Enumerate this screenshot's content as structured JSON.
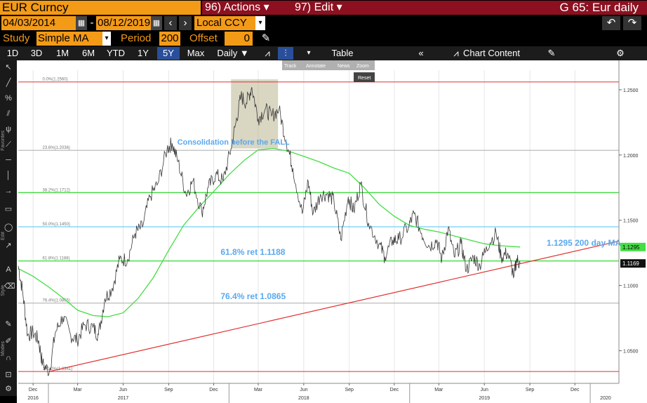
{
  "header": {
    "security": "EUR Curncy",
    "actions_label": "96) Actions ▾",
    "edit_label": "97) Edit ▾",
    "title": "G 65: Eur daily"
  },
  "daterange": {
    "start": "04/03/2014",
    "separator": "-",
    "end": "08/12/2019",
    "currency": "Local CCY"
  },
  "study": {
    "label": "Study",
    "value": "Simple MA",
    "period_label": "Period",
    "period_value": "200",
    "offset_label": "Offset",
    "offset_value": "0"
  },
  "toolbar": {
    "ranges": [
      "1D",
      "3D",
      "1M",
      "6M",
      "YTD",
      "1Y",
      "5Y",
      "Max"
    ],
    "selected_range": "5Y",
    "frequency": "Daily ▼",
    "table_label": "Table",
    "chart_content_label": "Chart Content"
  },
  "overlay_buttons": {
    "track": "Track",
    "annotate": "Annotate",
    "news": "News",
    "zoom": "Zoom",
    "reset": "Reset"
  },
  "sidebar": {
    "favorites": "Favorites",
    "edit": "Edit",
    "style": "Style",
    "modes": "Modes"
  },
  "colors": {
    "accent": "#f39a17",
    "red_header": "#8c1020",
    "fib_green": "#00d000",
    "ma_green": "#44dd44",
    "trend_red": "#e03030",
    "label_blue": "#5aa9ee"
  },
  "chart_data": {
    "type": "line",
    "title": "",
    "xlabel": "",
    "ylabel": "",
    "ylim": [
      1.025,
      1.265
    ],
    "x_range": [
      "2016-11-01",
      "2020-02-28"
    ],
    "x_tick_labels": [
      {
        "date": "2016-12-01",
        "label": "Dec"
      },
      {
        "date": "2017-03-01",
        "label": "Mar"
      },
      {
        "date": "2017-06-01",
        "label": "Jun"
      },
      {
        "date": "2017-09-01",
        "label": "Sep"
      },
      {
        "date": "2017-12-01",
        "label": "Dec"
      },
      {
        "date": "2018-03-01",
        "label": "Mar"
      },
      {
        "date": "2018-06-01",
        "label": "Jun"
      },
      {
        "date": "2018-09-01",
        "label": "Sep"
      },
      {
        "date": "2018-12-01",
        "label": "Dec"
      },
      {
        "date": "2019-03-01",
        "label": "Mar"
      },
      {
        "date": "2019-06-01",
        "label": "Jun"
      },
      {
        "date": "2019-09-01",
        "label": "Sep"
      },
      {
        "date": "2019-12-01",
        "label": "Dec"
      }
    ],
    "year_labels": [
      {
        "date": "2016-12-01",
        "label": "2016"
      },
      {
        "date": "2017-06-01",
        "label": "2017"
      },
      {
        "date": "2018-06-01",
        "label": "2018"
      },
      {
        "date": "2019-06-01",
        "label": "2019"
      },
      {
        "date": "2020-02-01",
        "label": "2020"
      }
    ],
    "y_ticks": [
      1.05,
      1.1,
      1.15,
      1.2,
      1.25
    ],
    "y_tick_labels": [
      "1.0500",
      "1.1000",
      "1.1500",
      "1.2000",
      "1.2500"
    ],
    "last_price": {
      "value": 1.1169,
      "label": "1.1169"
    },
    "last_ma": {
      "value": 1.1295,
      "label": "1.1295"
    },
    "fib_levels": [
      {
        "value": 1.256,
        "label": "0.0%(1.2560)",
        "color": "#e03030"
      },
      {
        "value": 1.2036,
        "label": "23.6%(1.2036)",
        "color": "#aaaaaa"
      },
      {
        "value": 1.1712,
        "label": "38.2%(1.1712)",
        "color": "#00d000"
      },
      {
        "value": 1.145,
        "label": "50.0%(1.1450)",
        "color": "#4fc3f7"
      },
      {
        "value": 1.1188,
        "label": "61.8%(1.1188)",
        "color": "#00d000"
      },
      {
        "value": 1.0865,
        "label": "76.4%(1.0865)",
        "color": "#aaaaaa"
      },
      {
        "value": 1.0341,
        "label": "100.0%(1.0341)",
        "color": "#e03030"
      }
    ],
    "annotations": [
      {
        "text": "Consolidation before the FALL",
        "date": "2018-01-10",
        "value": 1.208
      },
      {
        "text": "61.8% ret 1.1188",
        "date": "2017-12-15",
        "value": 1.1235
      },
      {
        "text": "76.4% ret 1.0865",
        "date": "2017-12-15",
        "value": 1.0895
      },
      {
        "text": "1.1295 200 day MA",
        "date": "2019-10-05",
        "value": 1.1305
      }
    ],
    "highlight_box": {
      "x0": "2018-01-05",
      "x1": "2018-04-10",
      "y0": 1.205,
      "y1": 1.258
    },
    "trendline": [
      {
        "date": "2017-01-03",
        "value": 1.0341
      },
      {
        "date": "2020-02-28",
        "value": 1.134
      }
    ],
    "series": [
      {
        "name": "EUR Curncy",
        "color": "#d8d8d8",
        "points": [
          [
            "2016-11-01",
            1.115
          ],
          [
            "2016-11-10",
            1.095
          ],
          [
            "2016-11-20",
            1.062
          ],
          [
            "2016-12-01",
            1.064
          ],
          [
            "2016-12-12",
            1.058
          ],
          [
            "2016-12-20",
            1.04
          ],
          [
            "2017-01-03",
            1.0341
          ],
          [
            "2017-01-15",
            1.064
          ],
          [
            "2017-01-30",
            1.076
          ],
          [
            "2017-02-15",
            1.062
          ],
          [
            "2017-02-28",
            1.058
          ],
          [
            "2017-03-15",
            1.07
          ],
          [
            "2017-04-01",
            1.068
          ],
          [
            "2017-04-12",
            1.062
          ],
          [
            "2017-04-25",
            1.09
          ],
          [
            "2017-05-10",
            1.098
          ],
          [
            "2017-05-25",
            1.12
          ],
          [
            "2017-06-10",
            1.12
          ],
          [
            "2017-06-25",
            1.14
          ],
          [
            "2017-07-10",
            1.145
          ],
          [
            "2017-07-25",
            1.168
          ],
          [
            "2017-08-10",
            1.178
          ],
          [
            "2017-08-29",
            1.205
          ],
          [
            "2017-09-08",
            1.209
          ],
          [
            "2017-09-20",
            1.195
          ],
          [
            "2017-10-06",
            1.17
          ],
          [
            "2017-10-20",
            1.18
          ],
          [
            "2017-11-07",
            1.156
          ],
          [
            "2017-11-20",
            1.175
          ],
          [
            "2017-12-05",
            1.185
          ],
          [
            "2017-12-20",
            1.18
          ],
          [
            "2018-01-05",
            1.205
          ],
          [
            "2018-01-15",
            1.225
          ],
          [
            "2018-01-25",
            1.245
          ],
          [
            "2018-02-05",
            1.24
          ],
          [
            "2018-02-16",
            1.252
          ],
          [
            "2018-03-01",
            1.228
          ],
          [
            "2018-03-15",
            1.235
          ],
          [
            "2018-03-28",
            1.23
          ],
          [
            "2018-04-12",
            1.235
          ],
          [
            "2018-04-27",
            1.21
          ],
          [
            "2018-05-10",
            1.19
          ],
          [
            "2018-05-29",
            1.155
          ],
          [
            "2018-06-10",
            1.18
          ],
          [
            "2018-06-20",
            1.155
          ],
          [
            "2018-07-05",
            1.17
          ],
          [
            "2018-07-20",
            1.17
          ],
          [
            "2018-08-01",
            1.165
          ],
          [
            "2018-08-15",
            1.135
          ],
          [
            "2018-08-30",
            1.168
          ],
          [
            "2018-09-10",
            1.157
          ],
          [
            "2018-09-24",
            1.178
          ],
          [
            "2018-10-10",
            1.148
          ],
          [
            "2018-10-31",
            1.132
          ],
          [
            "2018-11-12",
            1.122
          ],
          [
            "2018-11-28",
            1.135
          ],
          [
            "2018-12-10",
            1.135
          ],
          [
            "2018-12-31",
            1.146
          ],
          [
            "2019-01-10",
            1.155
          ],
          [
            "2019-01-25",
            1.14
          ],
          [
            "2019-02-10",
            1.13
          ],
          [
            "2019-02-25",
            1.135
          ],
          [
            "2019-03-07",
            1.12
          ],
          [
            "2019-03-20",
            1.144
          ],
          [
            "2019-04-01",
            1.122
          ],
          [
            "2019-04-15",
            1.132
          ],
          [
            "2019-04-26",
            1.112
          ],
          [
            "2019-05-10",
            1.122
          ],
          [
            "2019-05-23",
            1.115
          ],
          [
            "2019-06-05",
            1.13
          ],
          [
            "2019-06-25",
            1.14
          ],
          [
            "2019-07-05",
            1.122
          ],
          [
            "2019-07-18",
            1.125
          ],
          [
            "2019-07-31",
            1.107
          ],
          [
            "2019-08-05",
            1.12
          ],
          [
            "2019-08-12",
            1.1169
          ]
        ]
      },
      {
        "name": "Simple MA 200",
        "color": "#44dd44",
        "points": [
          [
            "2016-11-01",
            1.113
          ],
          [
            "2016-12-01",
            1.107
          ],
          [
            "2017-01-01",
            1.099
          ],
          [
            "2017-02-01",
            1.09
          ],
          [
            "2017-03-01",
            1.081
          ],
          [
            "2017-04-01",
            1.077
          ],
          [
            "2017-05-01",
            1.076
          ],
          [
            "2017-06-01",
            1.079
          ],
          [
            "2017-07-01",
            1.09
          ],
          [
            "2017-08-01",
            1.106
          ],
          [
            "2017-09-01",
            1.127
          ],
          [
            "2017-10-01",
            1.146
          ],
          [
            "2017-11-01",
            1.16
          ],
          [
            "2017-12-01",
            1.172
          ],
          [
            "2018-01-01",
            1.185
          ],
          [
            "2018-02-01",
            1.196
          ],
          [
            "2018-03-01",
            1.204
          ],
          [
            "2018-04-01",
            1.205
          ],
          [
            "2018-05-01",
            1.203
          ],
          [
            "2018-06-01",
            1.199
          ],
          [
            "2018-07-01",
            1.195
          ],
          [
            "2018-08-01",
            1.19
          ],
          [
            "2018-09-01",
            1.186
          ],
          [
            "2018-10-01",
            1.175
          ],
          [
            "2018-11-01",
            1.162
          ],
          [
            "2018-12-01",
            1.153
          ],
          [
            "2019-01-01",
            1.146
          ],
          [
            "2019-02-01",
            1.143
          ],
          [
            "2019-03-01",
            1.141
          ],
          [
            "2019-04-01",
            1.138
          ],
          [
            "2019-05-01",
            1.135
          ],
          [
            "2019-06-01",
            1.132
          ],
          [
            "2019-07-01",
            1.1305
          ],
          [
            "2019-08-12",
            1.1295
          ]
        ]
      }
    ]
  }
}
